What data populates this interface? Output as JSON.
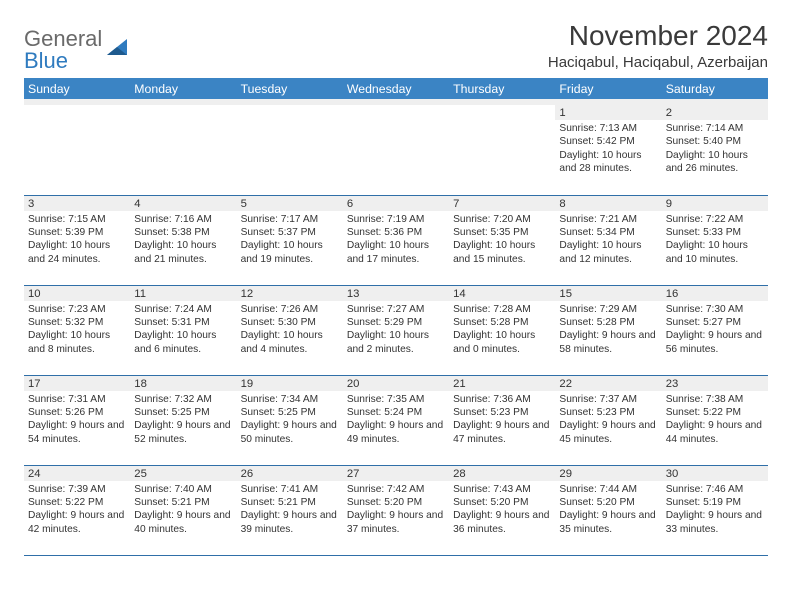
{
  "logo": {
    "primary": "General",
    "secondary": "Blue"
  },
  "title": "November 2024",
  "location": "Haciqabul, Haciqabul, Azerbaijan",
  "colors": {
    "header_bg": "#3b84c4",
    "header_text": "#ffffff",
    "daynum_bg": "#efefef",
    "cell_border": "#2f6fa8",
    "text": "#333333",
    "logo_gray": "#6a6a6a",
    "logo_blue": "#2f7bbf"
  },
  "dayHeaders": [
    "Sunday",
    "Monday",
    "Tuesday",
    "Wednesday",
    "Thursday",
    "Friday",
    "Saturday"
  ],
  "startDayIndex": 5,
  "daysInMonth": 30,
  "days": {
    "1": {
      "sunrise": "7:13 AM",
      "sunset": "5:42 PM",
      "daylight": "10 hours and 28 minutes."
    },
    "2": {
      "sunrise": "7:14 AM",
      "sunset": "5:40 PM",
      "daylight": "10 hours and 26 minutes."
    },
    "3": {
      "sunrise": "7:15 AM",
      "sunset": "5:39 PM",
      "daylight": "10 hours and 24 minutes."
    },
    "4": {
      "sunrise": "7:16 AM",
      "sunset": "5:38 PM",
      "daylight": "10 hours and 21 minutes."
    },
    "5": {
      "sunrise": "7:17 AM",
      "sunset": "5:37 PM",
      "daylight": "10 hours and 19 minutes."
    },
    "6": {
      "sunrise": "7:19 AM",
      "sunset": "5:36 PM",
      "daylight": "10 hours and 17 minutes."
    },
    "7": {
      "sunrise": "7:20 AM",
      "sunset": "5:35 PM",
      "daylight": "10 hours and 15 minutes."
    },
    "8": {
      "sunrise": "7:21 AM",
      "sunset": "5:34 PM",
      "daylight": "10 hours and 12 minutes."
    },
    "9": {
      "sunrise": "7:22 AM",
      "sunset": "5:33 PM",
      "daylight": "10 hours and 10 minutes."
    },
    "10": {
      "sunrise": "7:23 AM",
      "sunset": "5:32 PM",
      "daylight": "10 hours and 8 minutes."
    },
    "11": {
      "sunrise": "7:24 AM",
      "sunset": "5:31 PM",
      "daylight": "10 hours and 6 minutes."
    },
    "12": {
      "sunrise": "7:26 AM",
      "sunset": "5:30 PM",
      "daylight": "10 hours and 4 minutes."
    },
    "13": {
      "sunrise": "7:27 AM",
      "sunset": "5:29 PM",
      "daylight": "10 hours and 2 minutes."
    },
    "14": {
      "sunrise": "7:28 AM",
      "sunset": "5:28 PM",
      "daylight": "10 hours and 0 minutes."
    },
    "15": {
      "sunrise": "7:29 AM",
      "sunset": "5:28 PM",
      "daylight": "9 hours and 58 minutes."
    },
    "16": {
      "sunrise": "7:30 AM",
      "sunset": "5:27 PM",
      "daylight": "9 hours and 56 minutes."
    },
    "17": {
      "sunrise": "7:31 AM",
      "sunset": "5:26 PM",
      "daylight": "9 hours and 54 minutes."
    },
    "18": {
      "sunrise": "7:32 AM",
      "sunset": "5:25 PM",
      "daylight": "9 hours and 52 minutes."
    },
    "19": {
      "sunrise": "7:34 AM",
      "sunset": "5:25 PM",
      "daylight": "9 hours and 50 minutes."
    },
    "20": {
      "sunrise": "7:35 AM",
      "sunset": "5:24 PM",
      "daylight": "9 hours and 49 minutes."
    },
    "21": {
      "sunrise": "7:36 AM",
      "sunset": "5:23 PM",
      "daylight": "9 hours and 47 minutes."
    },
    "22": {
      "sunrise": "7:37 AM",
      "sunset": "5:23 PM",
      "daylight": "9 hours and 45 minutes."
    },
    "23": {
      "sunrise": "7:38 AM",
      "sunset": "5:22 PM",
      "daylight": "9 hours and 44 minutes."
    },
    "24": {
      "sunrise": "7:39 AM",
      "sunset": "5:22 PM",
      "daylight": "9 hours and 42 minutes."
    },
    "25": {
      "sunrise": "7:40 AM",
      "sunset": "5:21 PM",
      "daylight": "9 hours and 40 minutes."
    },
    "26": {
      "sunrise": "7:41 AM",
      "sunset": "5:21 PM",
      "daylight": "9 hours and 39 minutes."
    },
    "27": {
      "sunrise": "7:42 AM",
      "sunset": "5:20 PM",
      "daylight": "9 hours and 37 minutes."
    },
    "28": {
      "sunrise": "7:43 AM",
      "sunset": "5:20 PM",
      "daylight": "9 hours and 36 minutes."
    },
    "29": {
      "sunrise": "7:44 AM",
      "sunset": "5:20 PM",
      "daylight": "9 hours and 35 minutes."
    },
    "30": {
      "sunrise": "7:46 AM",
      "sunset": "5:19 PM",
      "daylight": "9 hours and 33 minutes."
    }
  }
}
